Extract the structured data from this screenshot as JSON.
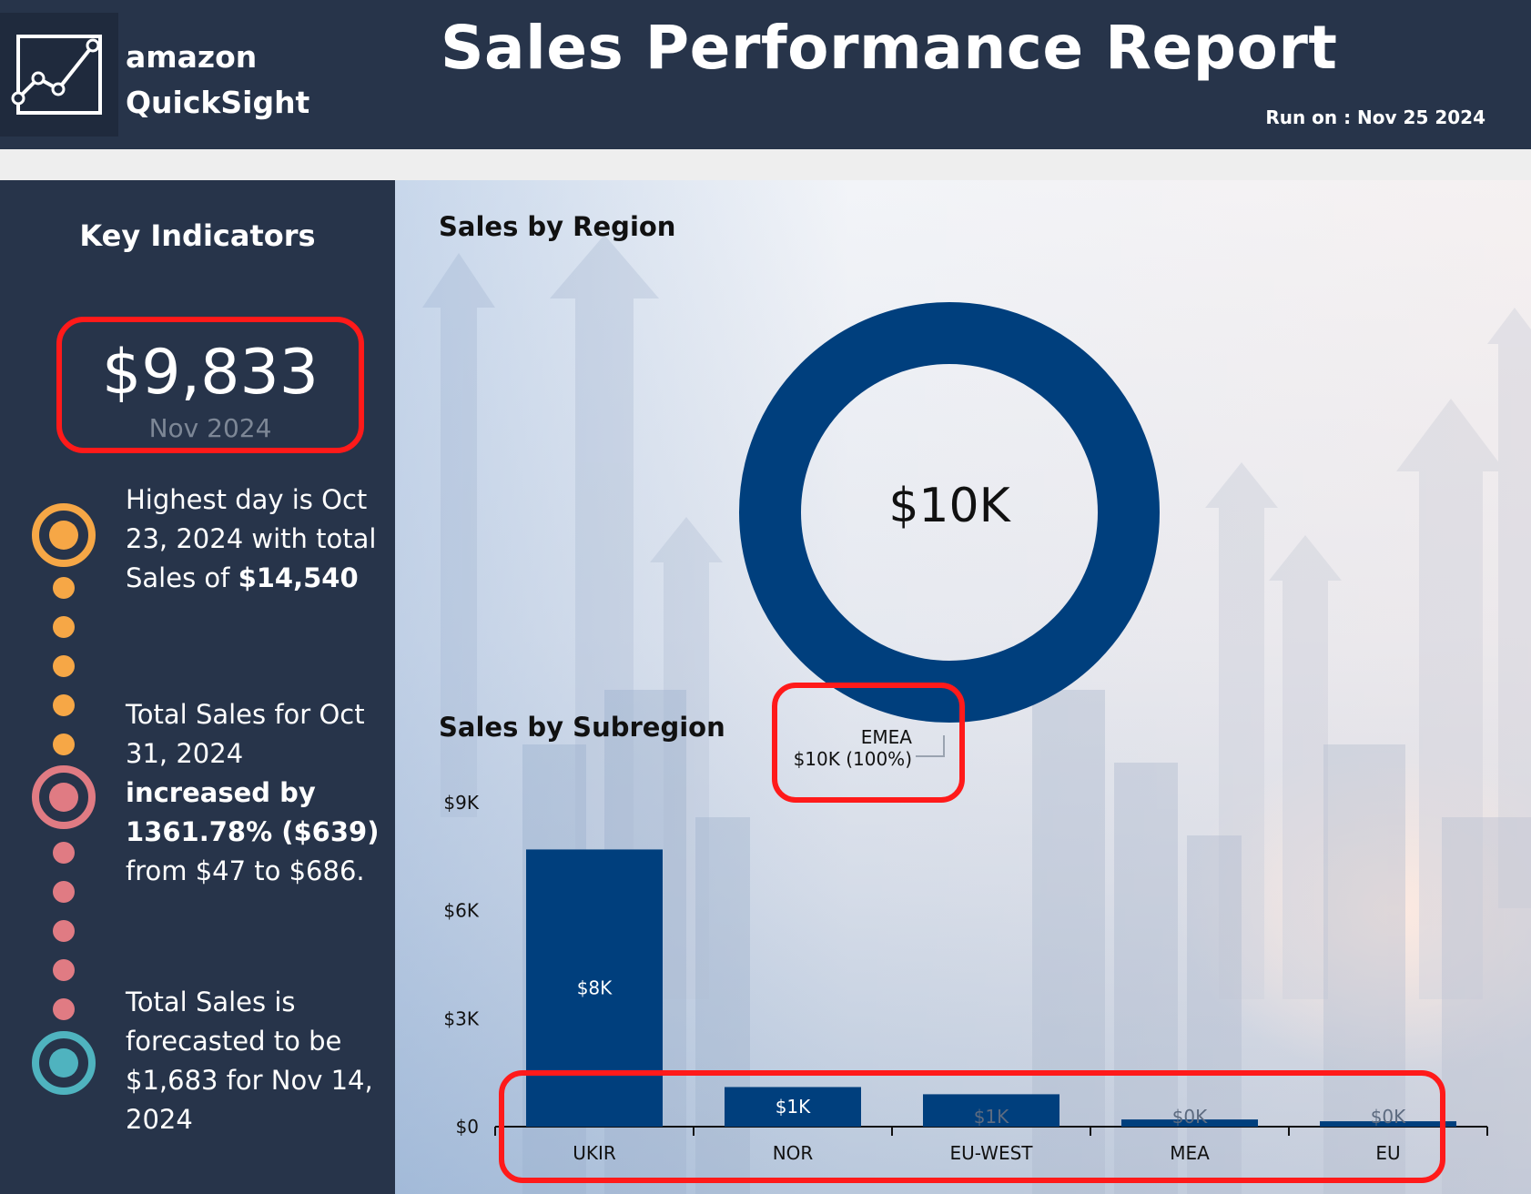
{
  "header": {
    "brand_line1": "amazon",
    "brand_line2": "QuickSight",
    "title": "Sales Performance Report",
    "run_on": "Run on :  Nov 25 2024",
    "logo_icon": "line-chart-icon"
  },
  "key_indicators": {
    "title": "Key Indicators",
    "kpi_value": "$9,833",
    "kpi_period": "Nov 2024",
    "insights": [
      {
        "text_a": "Highest day is Oct 23, 2024 with total Sales of ",
        "text_b": "$14,540",
        "color": "#f6a746"
      },
      {
        "text_a": "Total Sales for Oct 31, 2024 ",
        "text_b": "increased by 1361.78% ($639)",
        "text_c": " from $47 to $686.",
        "color": "#e07b83"
      },
      {
        "text_a": "Total Sales is forecasted to be $1,683 for Nov 14, 2024",
        "color": "#4fb3bf"
      }
    ]
  },
  "region": {
    "title": "Sales by Region",
    "center_label": "$10K",
    "slice_name": "EMEA",
    "slice_label": "$10K (100%)",
    "color": "#003f7d"
  },
  "subregion": {
    "title": "Sales by Subregion"
  },
  "chart_data": [
    {
      "type": "pie",
      "title": "Sales by Region",
      "categories": [
        "EMEA"
      ],
      "values": [
        10000
      ],
      "labels": [
        "$10K (100%)"
      ],
      "center_label": "$10K"
    },
    {
      "type": "bar",
      "title": "Sales by Subregion",
      "categories": [
        "UKIR",
        "NOR",
        "EU-WEST",
        "MEA",
        "EU"
      ],
      "values": [
        7700,
        1100,
        900,
        200,
        150
      ],
      "data_labels": [
        "$8K",
        "$1K",
        "$1K",
        "$0K",
        "$0K"
      ],
      "y_ticks": [
        "$0",
        "$3K",
        "$6K",
        "$9K"
      ],
      "y_tick_values": [
        0,
        3000,
        6000,
        9000
      ],
      "ylim": [
        0,
        9000
      ],
      "color": "#003f7d"
    }
  ]
}
